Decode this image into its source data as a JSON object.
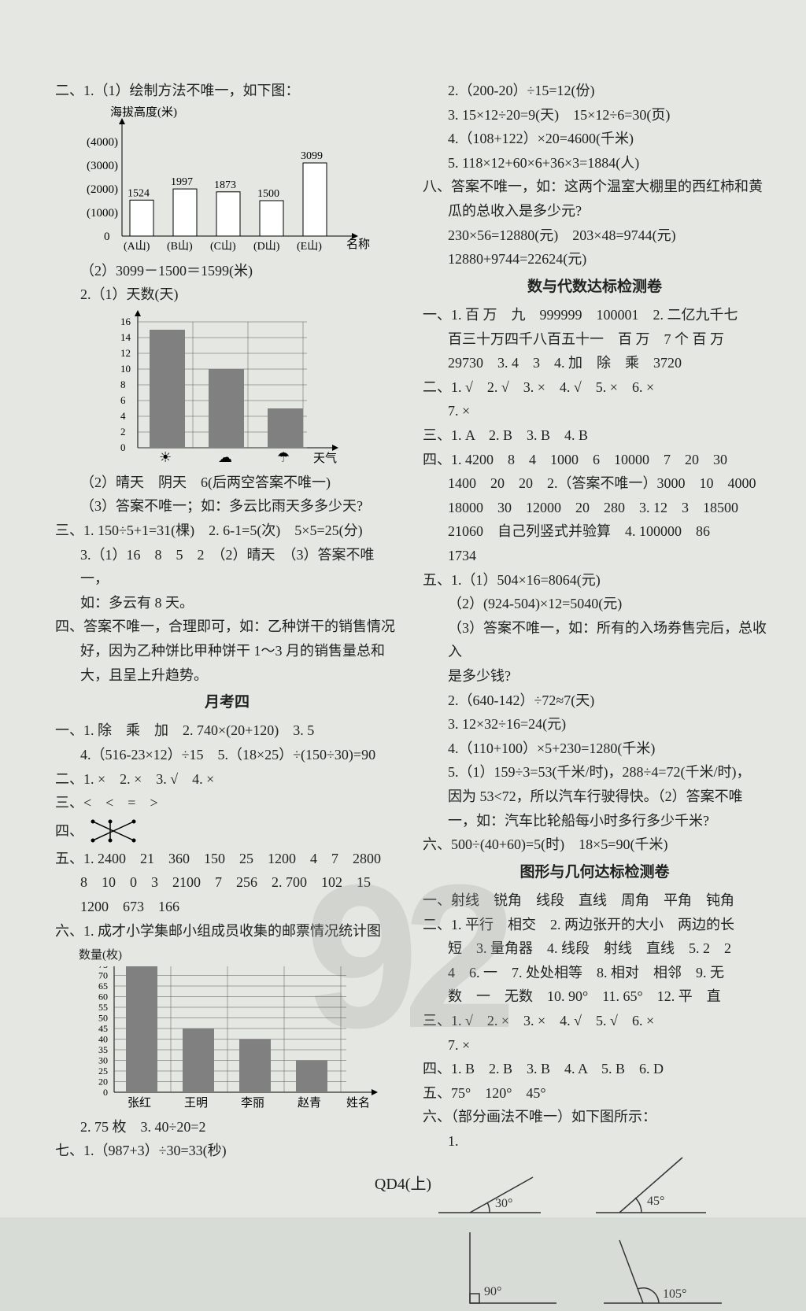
{
  "footer": "QD4(上)",
  "watermark": "92",
  "left": {
    "l1": "二、1.（1）绘制方法不唯一，如下图：",
    "chart1": {
      "ylabel": "海拔高度(米)",
      "ylim": [
        0,
        4000
      ],
      "ytick": 1000,
      "xlabel_suffix": "名称",
      "cats": [
        "(A山)",
        "(B山)",
        "(C山)",
        "(D山)",
        "(E山)"
      ],
      "vals": [
        1524,
        1997,
        1873,
        1500,
        3099
      ],
      "bar_fill": "#ffffff",
      "bar_stroke": "#000000"
    },
    "l2": "（2）3099－1500＝1599(米)",
    "l3": "2.（1）天数(天)",
    "chart2": {
      "ylim": [
        0,
        16
      ],
      "ytick": 2,
      "xlabel": "天气",
      "cats": [
        "☀",
        "☁",
        "☂"
      ],
      "vals": [
        15,
        10,
        5
      ],
      "bar_fill": "#808080",
      "grid": "#555"
    },
    "l4": "（2）晴天　阴天　6(后两空答案不唯一)",
    "l5": "（3）答案不唯一；如：多云比雨天多多少天?",
    "l6": "三、1. 150÷5+1=31(棵)　2. 6-1=5(次)　5×5=25(分)",
    "l7": "3.（1）16　8　5　2　（2）晴天　（3）答案不唯一，",
    "l8": "如：多云有 8 天。",
    "l9": "四、答案不唯一，合理即可，如：乙种饼干的销售情况",
    "l10": "好，因为乙种饼比甲种饼干 1～3 月的销售量总和",
    "l11": "大，且呈上升趋势。",
    "title1": "月考四",
    "l12": "一、1. 除　乘　加　2. 740×(20+120)　3. 5",
    "l13": "4.（516-23×12）÷15　5.（18×25）÷(150÷30)=90",
    "l14": "二、1. ×　2. ×　3. √　4. ×",
    "l15": "三、<　<　=　>",
    "l16": "四、",
    "l17": "五、1. 2400　21　360　150　25　1200　4　7　2800",
    "l18": "8　10　0　3　2100　7　256　2. 700　102　15",
    "l19": "1200　673　166",
    "l20": "六、1. 成才小学集邮小组成员收集的邮票情况统计图",
    "chart3": {
      "ylabel": "数量(枚)",
      "ylim": [
        0,
        75
      ],
      "ytick": 5,
      "ytick0": 20,
      "xlabel": "姓名",
      "cats": [
        "张红",
        "王明",
        "李丽",
        "赵青"
      ],
      "vals": [
        75,
        45,
        40,
        30
      ],
      "bar_fill": "#808080",
      "grid": "#555"
    },
    "l21": "2. 75 枚　3. 40÷20=2",
    "l22": "七、1.（987+3）÷30=33(秒)"
  },
  "right": {
    "r1": "2.（200-20）÷15=12(份)",
    "r2": "3. 15×12÷20=9(天)　15×12÷6=30(页)",
    "r3": "4.（108+122）×20=4600(千米)",
    "r4": "5. 118×12+60×6+36×3=1884(人)",
    "r5": "八、答案不唯一，如：这两个温室大棚里的西红柿和黄",
    "r6": "瓜的总收入是多少元?",
    "r7": "230×56=12880(元)　203×48=9744(元)",
    "r8": "12880+9744=22624(元)",
    "title1": "数与代数达标检测卷",
    "r9": "一、1. 百 万　九　999999　100001　2. 二亿九千七",
    "r10": "百三十万四千八百五十一　百 万　7 个 百 万",
    "r11": "29730　3. 4　3　4. 加　除　乘　3720",
    "r12": "二、1. √　2. √　3. ×　4. √　5. ×　6. ×",
    "r13": "7. ×",
    "r14": "三、1. A　2. B　3. B　4. B",
    "r15": "四、1. 4200　8　4　1000　6　10000　7　20　30",
    "r16": "1400　20　20　2.（答案不唯一）3000　10　4000",
    "r17": "18000　30　12000　20　280　3. 12　3　18500",
    "r18": "21060　自己列竖式并验算　4. 100000　86",
    "r19": "1734",
    "r20": "五、1.（1）504×16=8064(元)",
    "r21": "（2）(924-504)×12=5040(元)",
    "r22": "（3）答案不唯一，如：所有的入场券售完后，总收入",
    "r23": "是多少钱?",
    "r24": "2.（640-142）÷72≈7(天)",
    "r25": "3. 12×32÷16=24(元)",
    "r26": "4.（110+100）×5+230=1280(千米)",
    "r27": "5.（1）159÷3=53(千米/时)，288÷4=72(千米/时)，",
    "r28": "因为 53<72，所以汽车行驶得快。（2）答案不唯",
    "r29": "一，如：汽车比轮船每小时多行多少千米?",
    "r30": "六、500÷(40+60)=5(时)　18×5=90(千米)",
    "title2": "图形与几何达标检测卷",
    "r31": "一、射线　锐角　线段　直线　周角　平角　钝角",
    "r32": "二、1. 平行　相交　2. 两边张开的大小　两边的长",
    "r33": "短　3. 量角器　4. 线段　射线　直线　5. 2　2",
    "r34": "4　6. 一　7. 处处相等　8. 相对　相邻　9. 无",
    "r35": "数　一　无数　10. 90°　11. 65°　12. 平　直",
    "r36": "三、1. √　2. ×　3. ×　4. √　5. √　6. ×",
    "r37": "7. ×",
    "r38": "四、1. B　2. B　3. B　4. A　5. B　6. D",
    "r39": "五、75°　120°　45°",
    "r40": "六、（部分画法不唯一）如下图所示：",
    "r41": "1.",
    "angles": {
      "a30": "30°",
      "a45": "45°",
      "a90": "90°",
      "a105": "105°"
    }
  }
}
